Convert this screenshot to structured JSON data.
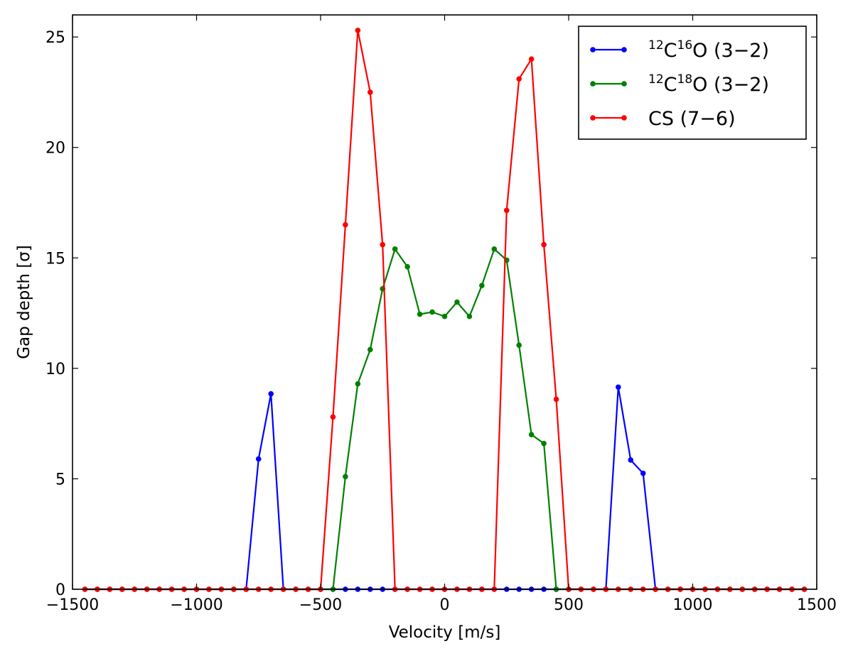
{
  "chart_data": {
    "type": "line",
    "xlabel": "Velocity [m/s]",
    "ylabel": "Gap depth [σ]",
    "xlim": [
      -1500,
      1500
    ],
    "ylim": [
      0,
      26
    ],
    "xticks": [
      -1500,
      -1000,
      -500,
      0,
      500,
      1000,
      1500
    ],
    "yticks": [
      0,
      5,
      10,
      15,
      20,
      25
    ],
    "xtick_labels": [
      "−1500",
      "−1000",
      "−500",
      "0",
      "500",
      "1000",
      "1500"
    ],
    "ytick_labels": [
      "0",
      "5",
      "10",
      "15",
      "20",
      "25"
    ],
    "grid": false,
    "legend_position": "top-right",
    "x": [
      -1450,
      -1400,
      -1350,
      -1300,
      -1250,
      -1200,
      -1150,
      -1100,
      -1050,
      -1000,
      -950,
      -900,
      -850,
      -800,
      -750,
      -700,
      -650,
      -600,
      -550,
      -500,
      -450,
      -400,
      -350,
      -300,
      -250,
      -200,
      -150,
      -100,
      -50,
      0,
      50,
      100,
      150,
      200,
      250,
      300,
      350,
      400,
      450,
      500,
      550,
      600,
      650,
      700,
      750,
      800,
      850,
      900,
      950,
      1000,
      1050,
      1100,
      1150,
      1200,
      1250,
      1300,
      1350,
      1400,
      1450
    ],
    "series": [
      {
        "name": "¹²C¹⁶O (3−2)",
        "legend_parts": {
          "sup1": "12",
          "base1": "C",
          "sup2": "16",
          "rest": "O (3−2)"
        },
        "color": "#0000ff",
        "values": [
          0,
          0,
          0,
          0,
          0,
          0,
          0,
          0,
          0,
          0,
          0,
          0,
          0,
          0,
          5.9,
          8.85,
          0,
          0,
          0,
          0,
          0,
          0,
          0,
          0,
          0,
          0,
          0,
          0,
          0,
          0,
          0,
          0,
          0,
          0,
          0,
          0,
          0,
          0,
          0,
          0,
          0,
          0,
          0,
          9.15,
          5.85,
          5.25,
          0,
          0,
          0,
          0,
          0,
          0,
          0,
          0,
          0,
          0,
          0,
          0,
          0
        ]
      },
      {
        "name": "¹²C¹⁸O (3−2)",
        "legend_parts": {
          "sup1": "12",
          "base1": "C",
          "sup2": "18",
          "rest": "O (3−2)"
        },
        "color": "#008000",
        "values": [
          0,
          0,
          0,
          0,
          0,
          0,
          0,
          0,
          0,
          0,
          0,
          0,
          0,
          0,
          0,
          0,
          0,
          0,
          0,
          0,
          0,
          5.1,
          9.3,
          10.85,
          13.6,
          15.4,
          14.6,
          12.45,
          12.55,
          12.35,
          13.0,
          12.35,
          13.75,
          15.4,
          14.9,
          11.05,
          7.0,
          6.6,
          0,
          0,
          0,
          0,
          0,
          0,
          0,
          0,
          0,
          0,
          0,
          0,
          0,
          0,
          0,
          0,
          0,
          0,
          0,
          0,
          0
        ]
      },
      {
        "name": "CS (7−6)",
        "legend_parts": {
          "sup1": "",
          "base1": "",
          "sup2": "",
          "rest": "CS (7−6)"
        },
        "color": "#ff0000",
        "values": [
          0,
          0,
          0,
          0,
          0,
          0,
          0,
          0,
          0,
          0,
          0,
          0,
          0,
          0,
          0,
          0,
          0,
          0,
          0,
          0,
          7.8,
          16.5,
          25.3,
          22.5,
          15.6,
          0,
          0,
          0,
          0,
          0,
          0,
          0,
          0,
          0,
          17.15,
          23.1,
          24.0,
          15.6,
          8.6,
          0,
          0,
          0,
          0,
          0,
          0,
          0,
          0,
          0,
          0,
          0,
          0,
          0,
          0,
          0,
          0,
          0,
          0,
          0,
          0
        ]
      }
    ]
  }
}
